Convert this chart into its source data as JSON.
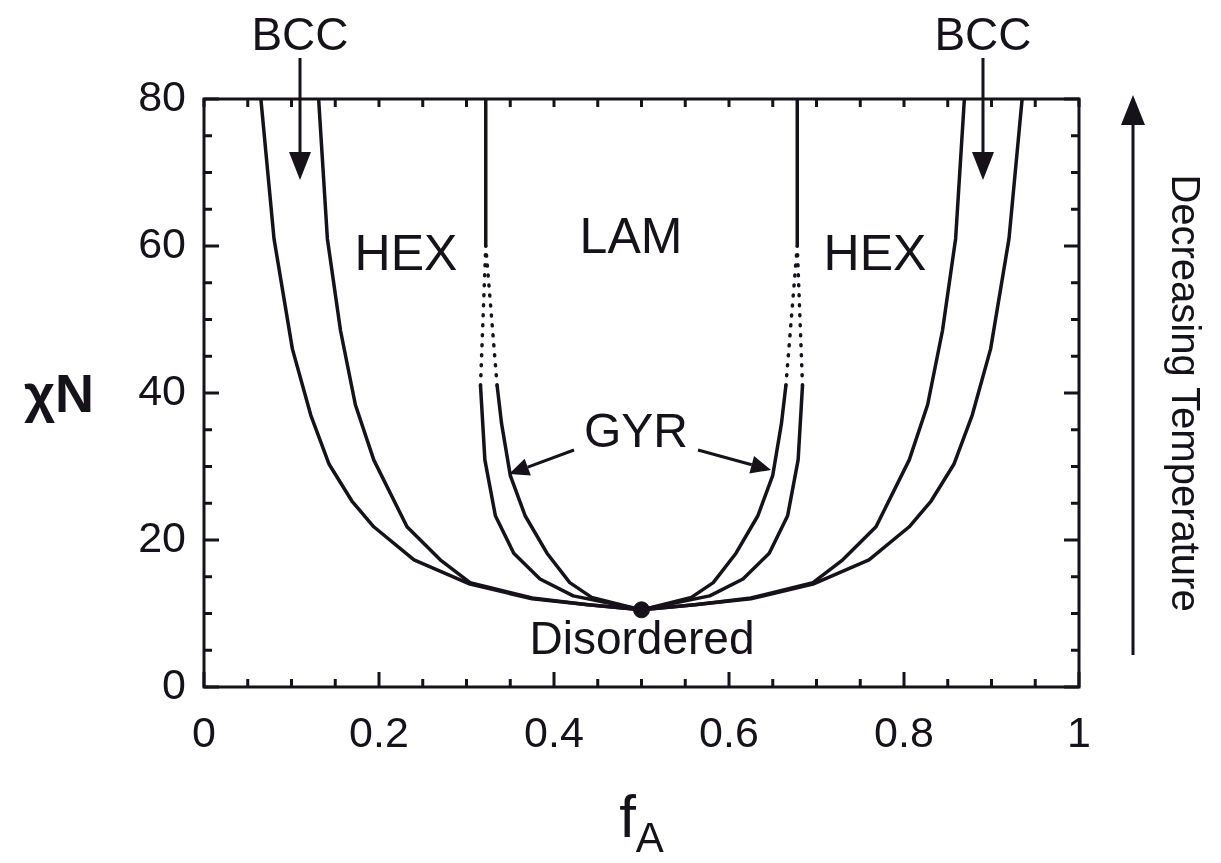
{
  "chart_data": {
    "type": "line",
    "xlabel": "f$_{A}$",
    "ylabel": "χN",
    "xlim": [
      0,
      1
    ],
    "ylim": [
      0,
      80
    ],
    "xticks": [
      0,
      {
        "value": 0.05,
        "label": null
      },
      {
        "value": 0.1,
        "label": null
      },
      {
        "value": 0.15,
        "label": null
      },
      0.2,
      {
        "value": 0.25,
        "label": null
      },
      {
        "value": 0.3,
        "label": null
      },
      {
        "value": 0.35,
        "label": null
      },
      0.4,
      {
        "value": 0.45,
        "label": null
      },
      {
        "value": 0.5,
        "label": null
      },
      {
        "value": 0.55,
        "label": null
      },
      0.6,
      {
        "value": 0.65,
        "label": null
      },
      {
        "value": 0.7,
        "label": null
      },
      {
        "value": 0.75,
        "label": null
      },
      0.8,
      {
        "value": 0.85,
        "label": null
      },
      {
        "value": 0.9,
        "label": null
      },
      {
        "value": 0.95,
        "label": null
      },
      1
    ],
    "yticks": [
      0,
      {
        "value": 5,
        "label": null
      },
      {
        "value": 10,
        "label": null
      },
      {
        "value": 15,
        "label": null
      },
      20,
      {
        "value": 25,
        "label": null
      },
      {
        "value": 30,
        "label": null
      },
      {
        "value": 35,
        "label": null
      },
      40,
      {
        "value": 45,
        "label": null
      },
      {
        "value": 50,
        "label": null
      },
      {
        "value": 55,
        "label": null
      },
      60,
      {
        "value": 65,
        "label": null
      },
      {
        "value": 70,
        "label": null
      },
      {
        "value": 75,
        "label": null
      },
      80
    ],
    "grid": false,
    "legend": false,
    "marker": "none",
    "line_style": "solid",
    "series": [
      {
        "color": "#15121a",
        "x": [
          0.065,
          0.08,
          0.101,
          0.122,
          0.143,
          0.169,
          0.194,
          0.24,
          0.304,
          0.375,
          0.439,
          0.5,
          0.561,
          0.625,
          0.696,
          0.76,
          0.806,
          0.831,
          0.857,
          0.878,
          0.899,
          0.92,
          0.935
        ],
        "values": [
          80,
          61,
          46,
          37,
          30.3,
          25.3,
          21.8,
          17.3,
          14,
          12,
          11.2,
          10.5,
          11.2,
          12,
          14,
          17.3,
          21.8,
          25.3,
          30.3,
          37,
          46,
          61,
          80
        ]
      },
      {
        "color": "#15121a",
        "x": [
          0.131,
          0.141,
          0.156,
          0.173,
          0.194,
          0.232,
          0.27,
          0.304,
          0.375,
          0.439,
          0.5,
          0.561,
          0.625,
          0.696,
          0.73,
          0.768,
          0.806,
          0.827,
          0.844,
          0.859,
          0.869
        ],
        "values": [
          80,
          61,
          48.5,
          38.4,
          30.9,
          21.8,
          17.3,
          14.2,
          12.1,
          11.2,
          10.5,
          11.2,
          12.1,
          14.2,
          17.3,
          21.8,
          30.9,
          38.4,
          48.5,
          61,
          80
        ]
      },
      {
        "color": "#15121a",
        "x": [
          0.316,
          0.321,
          0.333,
          0.354,
          0.384,
          0.422,
          0.5,
          0.578,
          0.616,
          0.646,
          0.667,
          0.679,
          0.684
        ],
        "values": [
          41,
          30.9,
          23.3,
          18.2,
          14.7,
          12.4,
          10.5,
          12.4,
          14.7,
          18.2,
          23.3,
          30.9,
          41
        ]
      },
      {
        "color": "#15121a",
        "x": [
          0.335,
          0.34,
          0.35,
          0.367,
          0.392,
          0.418,
          0.443,
          0.5,
          0.557,
          0.582,
          0.608,
          0.633,
          0.65,
          0.66,
          0.665
        ],
        "values": [
          41,
          35.9,
          28.8,
          23.3,
          18.2,
          14.2,
          12.2,
          10.5,
          12.2,
          14.2,
          18.2,
          23.3,
          28.8,
          35.9,
          41
        ]
      },
      {
        "color": "#15121a",
        "line_style": "dotted",
        "x": [
          0.316,
          0.322
        ],
        "values": [
          41,
          60
        ]
      },
      {
        "color": "#15121a",
        "line_style": "dotted",
        "x": [
          0.335,
          0.322
        ],
        "values": [
          41,
          60
        ]
      },
      {
        "color": "#15121a",
        "line_style": "dotted",
        "x": [
          0.684,
          0.678
        ],
        "values": [
          41,
          60
        ]
      },
      {
        "color": "#15121a",
        "line_style": "dotted",
        "x": [
          0.665,
          0.678
        ],
        "values": [
          41,
          60
        ]
      },
      {
        "color": "#15121a",
        "x": [
          0.322,
          0.322
        ],
        "values": [
          60,
          80
        ]
      },
      {
        "color": "#15121a",
        "x": [
          0.678,
          0.678
        ],
        "values": [
          60,
          80
        ]
      },
      {
        "type": "scatter",
        "marker": "circle",
        "color": "#15121a",
        "x": [
          0.5
        ],
        "values": [
          10.5
        ]
      }
    ],
    "annotations": [
      "BCC",
      "BCC",
      "HEX",
      "LAM",
      "HEX",
      "GYR",
      "Disordered",
      "Decreasing Temperature"
    ]
  }
}
